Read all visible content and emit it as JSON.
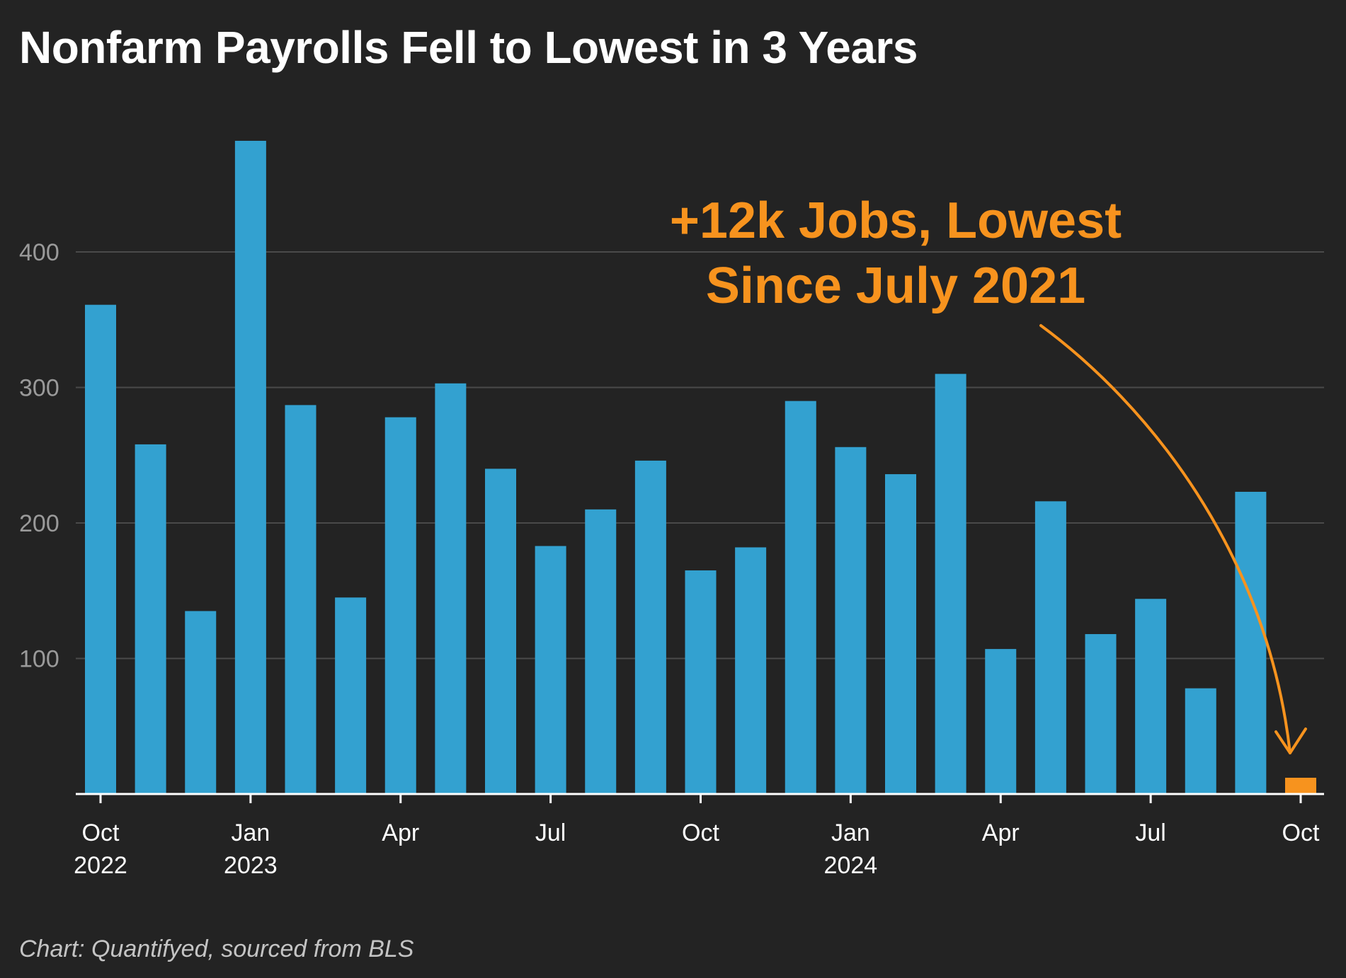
{
  "chart_data": {
    "type": "bar",
    "title": "Nonfarm Payrolls Fell to Lowest in 3 Years",
    "source": "Chart: Quantifyed, sourced from BLS",
    "xlabel": "",
    "ylabel": "",
    "ylim": [
      0,
      500
    ],
    "yticks": [
      100,
      200,
      300,
      400
    ],
    "grid": true,
    "categories": [
      "Oct 2022",
      "Nov 2022",
      "Dec 2022",
      "Jan 2023",
      "Feb 2023",
      "Mar 2023",
      "Apr 2023",
      "May 2023",
      "Jun 2023",
      "Jul 2023",
      "Aug 2023",
      "Sep 2023",
      "Oct 2023",
      "Nov 2023",
      "Dec 2023",
      "Jan 2024",
      "Feb 2024",
      "Mar 2024",
      "Apr 2024",
      "May 2024",
      "Jun 2024",
      "Jul 2024",
      "Aug 2024",
      "Sep 2024",
      "Oct 2024"
    ],
    "values": [
      361,
      258,
      135,
      482,
      287,
      145,
      278,
      303,
      240,
      183,
      210,
      246,
      165,
      182,
      290,
      256,
      236,
      310,
      107,
      216,
      118,
      144,
      78,
      223,
      12
    ],
    "highlight_index": 24,
    "x_tick_labels": [
      {
        "index": 0,
        "month": "Oct",
        "year": "2022"
      },
      {
        "index": 3,
        "month": "Jan",
        "year": "2023"
      },
      {
        "index": 6,
        "month": "Apr",
        "year": ""
      },
      {
        "index": 9,
        "month": "Jul",
        "year": ""
      },
      {
        "index": 12,
        "month": "Oct",
        "year": ""
      },
      {
        "index": 15,
        "month": "Jan",
        "year": "2024"
      },
      {
        "index": 18,
        "month": "Apr",
        "year": ""
      },
      {
        "index": 21,
        "month": "Jul",
        "year": ""
      },
      {
        "index": 24,
        "month": "Oct",
        "year": ""
      }
    ],
    "annotation": {
      "lines": [
        "+12k Jobs, Lowest",
        "Since July 2021"
      ],
      "target_index": 24
    },
    "colors": {
      "background": "#232323",
      "bar": "#33a1d0",
      "highlight": "#f7931e",
      "grid": "#4a4a4a",
      "axis": "#ffffff",
      "tick_label": "#ffffff",
      "y_tick_label": "#9a9a9a",
      "title": "#ffffff",
      "source": "#c4c4c4"
    }
  }
}
